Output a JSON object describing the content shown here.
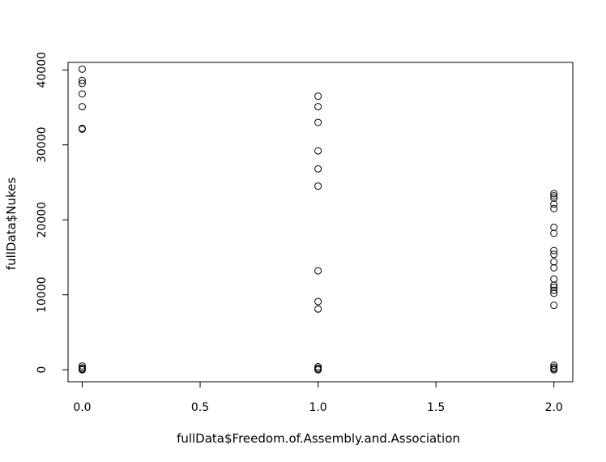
{
  "chart_data": {
    "type": "scatter",
    "title": "",
    "xlabel": "fullData$Freedom.of.Assembly.and.Association",
    "ylabel": "fullData$Nukes",
    "xlim": [
      -0.06,
      2.08
    ],
    "ylim": [
      -1600,
      41000
    ],
    "x_ticks": [
      0.0,
      0.5,
      1.0,
      1.5,
      2.0
    ],
    "x_tick_labels": [
      "0.0",
      "0.5",
      "1.0",
      "1.5",
      "2.0"
    ],
    "y_ticks": [
      0,
      10000,
      20000,
      30000,
      40000
    ],
    "y_tick_labels": [
      "0",
      "10000",
      "20000",
      "30000",
      "40000"
    ],
    "grid": false,
    "marker": "open-circle",
    "series": [
      {
        "points": [
          {
            "x": 0,
            "y": 40100
          },
          {
            "x": 0,
            "y": 38600
          },
          {
            "x": 0,
            "y": 38200
          },
          {
            "x": 0,
            "y": 36800
          },
          {
            "x": 0,
            "y": 35100
          },
          {
            "x": 0,
            "y": 32200
          },
          {
            "x": 0,
            "y": 32100
          },
          {
            "x": 0,
            "y": 500
          },
          {
            "x": 0,
            "y": 250
          },
          {
            "x": 0,
            "y": 100
          },
          {
            "x": 0,
            "y": 0
          },
          {
            "x": 1,
            "y": 36500
          },
          {
            "x": 1,
            "y": 35100
          },
          {
            "x": 1,
            "y": 33000
          },
          {
            "x": 1,
            "y": 29200
          },
          {
            "x": 1,
            "y": 26800
          },
          {
            "x": 1,
            "y": 24500
          },
          {
            "x": 1,
            "y": 13200
          },
          {
            "x": 1,
            "y": 9100
          },
          {
            "x": 1,
            "y": 8100
          },
          {
            "x": 1,
            "y": 400
          },
          {
            "x": 1,
            "y": 200
          },
          {
            "x": 1,
            "y": 50
          },
          {
            "x": 1,
            "y": 0
          },
          {
            "x": 2,
            "y": 23500
          },
          {
            "x": 2,
            "y": 23200
          },
          {
            "x": 2,
            "y": 22900
          },
          {
            "x": 2,
            "y": 22100
          },
          {
            "x": 2,
            "y": 21500
          },
          {
            "x": 2,
            "y": 19000
          },
          {
            "x": 2,
            "y": 18200
          },
          {
            "x": 2,
            "y": 15900
          },
          {
            "x": 2,
            "y": 15400
          },
          {
            "x": 2,
            "y": 14400
          },
          {
            "x": 2,
            "y": 13600
          },
          {
            "x": 2,
            "y": 12100
          },
          {
            "x": 2,
            "y": 11300
          },
          {
            "x": 2,
            "y": 11000
          },
          {
            "x": 2,
            "y": 10600
          },
          {
            "x": 2,
            "y": 10200
          },
          {
            "x": 2,
            "y": 8600
          },
          {
            "x": 2,
            "y": 600
          },
          {
            "x": 2,
            "y": 350
          },
          {
            "x": 2,
            "y": 150
          },
          {
            "x": 2,
            "y": 0
          }
        ]
      }
    ]
  }
}
